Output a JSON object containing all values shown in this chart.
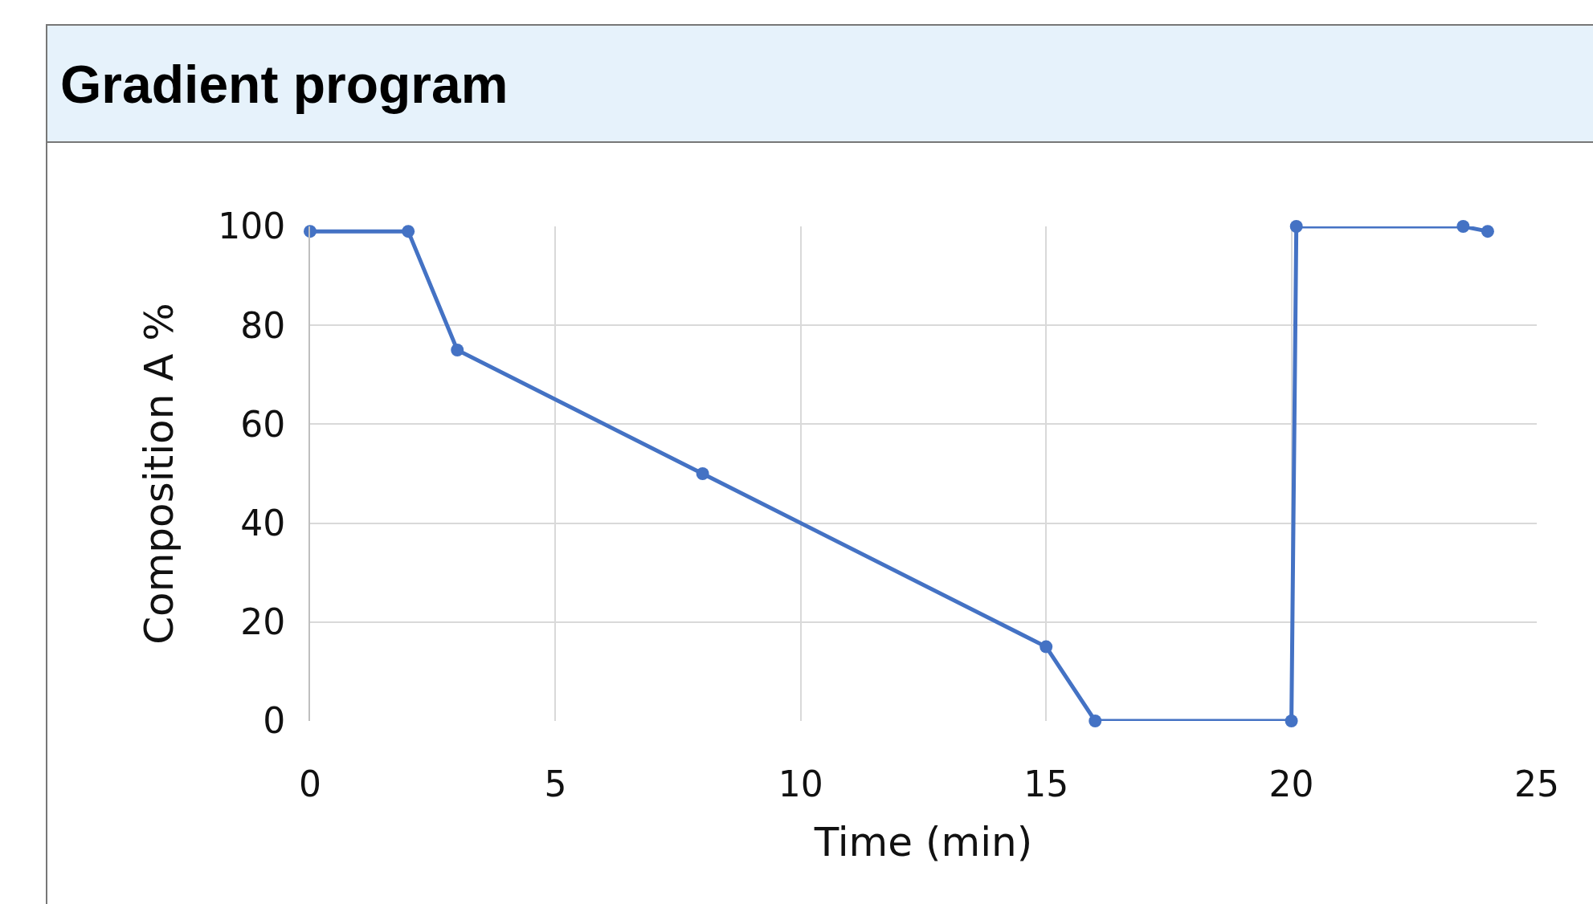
{
  "chart_data": {
    "type": "line",
    "title": "Gradient program",
    "xlabel": "Time (min)",
    "ylabel": "Composition A %",
    "x": [
      0,
      2,
      3,
      8,
      15,
      16,
      20,
      20.1,
      23.5,
      24
    ],
    "series": [
      {
        "color": "#4472c4",
        "values": [
          99,
          99,
          75,
          50,
          15,
          0,
          0,
          100,
          100,
          99
        ]
      }
    ],
    "xlim": [
      0,
      25
    ],
    "xticks": [
      0,
      5,
      10,
      15,
      20,
      25
    ],
    "ylim": [
      0,
      100
    ],
    "yticks": [
      0,
      20,
      40,
      60,
      80,
      100
    ],
    "grid": true,
    "marker": "circle",
    "line_style": "solid"
  }
}
